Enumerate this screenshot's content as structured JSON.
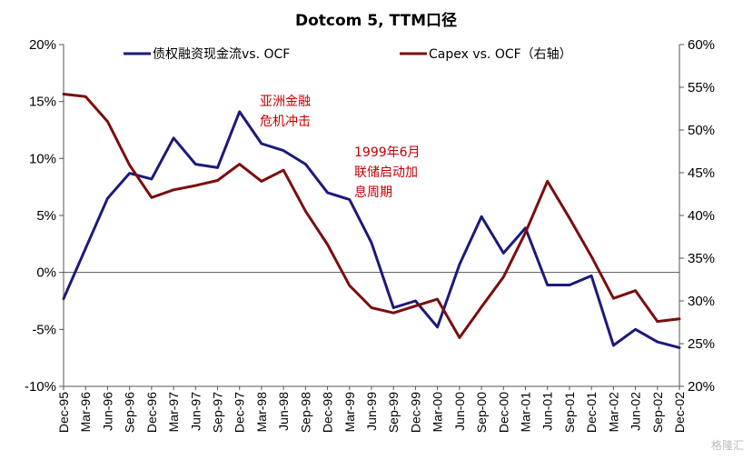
{
  "chart_data": {
    "type": "line",
    "title": "Dotcom 5, TTM口径",
    "x": [
      "Dec-95",
      "Mar-96",
      "Jun-96",
      "Sep-96",
      "Dec-96",
      "Mar-97",
      "Jun-97",
      "Sep-97",
      "Dec-97",
      "Mar-98",
      "Jun-98",
      "Sep-98",
      "Dec-98",
      "Mar-99",
      "Jun-99",
      "Sep-99",
      "Dec-99",
      "Mar-00",
      "Jun-00",
      "Sep-00",
      "Dec-00",
      "Mar-01",
      "Jun-01",
      "Sep-01",
      "Dec-01",
      "Mar-02",
      "Jun-02",
      "Sep-02",
      "Dec-02"
    ],
    "y_left": {
      "min": -10,
      "max": 20,
      "step": 5,
      "tick_labels": [
        "-10%",
        "-5%",
        "0%",
        "5%",
        "10%",
        "15%",
        "20%"
      ]
    },
    "y_right": {
      "min": 20,
      "max": 60,
      "step": 5,
      "tick_labels": [
        "20%",
        "25%",
        "30%",
        "35%",
        "40%",
        "45%",
        "50%",
        "55%",
        "60%"
      ]
    },
    "series": [
      {
        "name": "债权融资现金流vs. OCF",
        "axis": "left",
        "color": "#1b1a7a",
        "values": [
          -2.3,
          2.1,
          6.5,
          8.7,
          8.2,
          11.8,
          9.5,
          9.2,
          14.1,
          11.3,
          10.7,
          9.5,
          7.0,
          6.4,
          2.6,
          -3.1,
          -2.5,
          -4.8,
          0.7,
          4.9,
          1.7,
          3.9,
          -1.1,
          -1.1,
          -0.3,
          -6.4,
          -5.0,
          -6.1,
          -6.6
        ]
      },
      {
        "name": "Capex vs. OCF（右轴）",
        "axis": "right",
        "color": "#7b0e0e",
        "values": [
          54.2,
          53.9,
          51.0,
          45.9,
          42.1,
          43.0,
          43.5,
          44.1,
          46.0,
          44.0,
          45.3,
          40.5,
          36.6,
          31.8,
          29.2,
          28.6,
          29.4,
          30.2,
          25.7,
          29.3,
          32.8,
          38.0,
          44.0,
          39.7,
          35.2,
          30.3,
          31.2,
          27.6,
          27.9
        ]
      }
    ],
    "annotations": [
      {
        "lines": [
          "亚洲金融",
          "危机冲击"
        ]
      },
      {
        "lines": [
          "1999年6月",
          "联储启动加",
          "息周期"
        ]
      }
    ],
    "legend_position": "top",
    "grid": false
  },
  "watermark": "格隆汇"
}
